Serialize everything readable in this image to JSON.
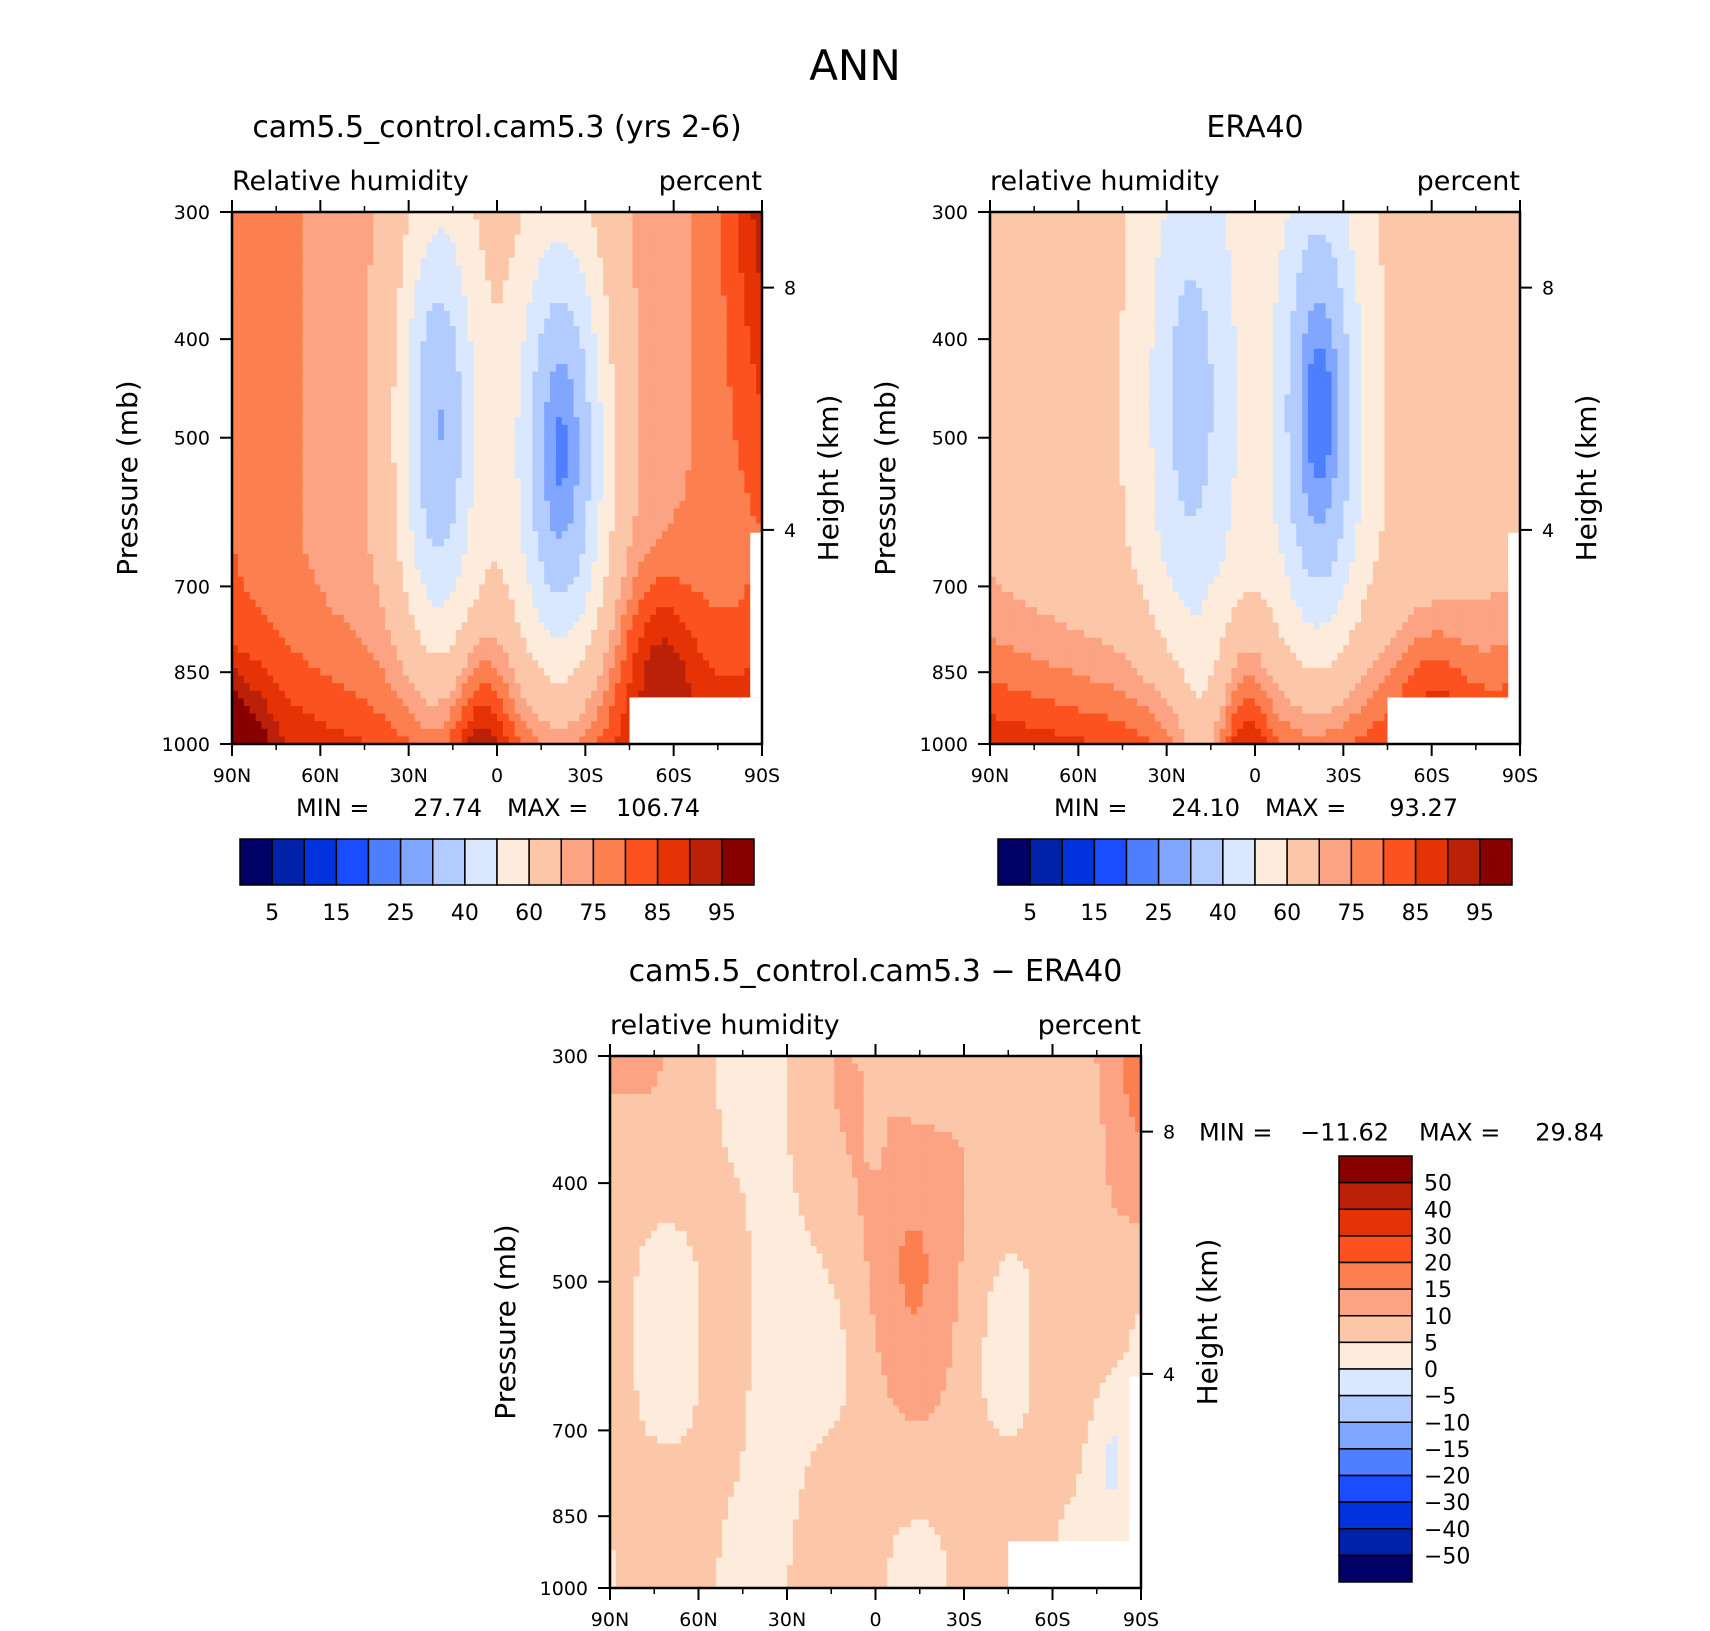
{
  "figure": {
    "title": "ANN"
  },
  "chart_data": [
    {
      "type": "heatmap",
      "id": "model",
      "title": "cam5.5_control.cam5.3 (yrs 2-6)",
      "subtitle_left": "Relative humidity",
      "subtitle_right": "percent",
      "ylabel": "Pressure (mb)",
      "ylabel_right": "Height (km)",
      "x_ticks": [
        "90N",
        "60N",
        "30N",
        "0",
        "30S",
        "60S",
        "90S"
      ],
      "x_range": [
        90,
        -90
      ],
      "y_ticks": [
        300,
        400,
        500,
        700,
        850,
        1000
      ],
      "y_range": [
        300,
        1000
      ],
      "y_scale": "log",
      "y_right_ticks": [
        "8",
        "4"
      ],
      "stats": {
        "min_label": "MIN =",
        "min": "27.74",
        "max_label": "MAX =",
        "max": "106.74"
      },
      "colorbar": {
        "orientation": "horizontal",
        "labels": [
          "5",
          "15",
          "25",
          "40",
          "60",
          "75",
          "85",
          "95"
        ]
      },
      "field": "model"
    },
    {
      "type": "heatmap",
      "id": "obs",
      "title": "ERA40",
      "subtitle_left": "relative humidity",
      "subtitle_right": "percent",
      "ylabel": "Pressure (mb)",
      "ylabel_right": "Height (km)",
      "x_ticks": [
        "90N",
        "60N",
        "30N",
        "0",
        "30S",
        "60S",
        "90S"
      ],
      "x_range": [
        90,
        -90
      ],
      "y_ticks": [
        300,
        400,
        500,
        700,
        850,
        1000
      ],
      "y_range": [
        300,
        1000
      ],
      "y_scale": "log",
      "y_right_ticks": [
        "8",
        "4"
      ],
      "stats": {
        "min_label": "MIN =",
        "min": "24.10",
        "max_label": "MAX =",
        "max": "93.27"
      },
      "colorbar": {
        "orientation": "horizontal",
        "labels": [
          "5",
          "15",
          "25",
          "40",
          "60",
          "75",
          "85",
          "95"
        ]
      },
      "field": "obs"
    },
    {
      "type": "heatmap",
      "id": "diff",
      "title": "cam5.5_control.cam5.3 − ERA40",
      "subtitle_left": "relative humidity",
      "subtitle_right": "percent",
      "ylabel": "Pressure (mb)",
      "ylabel_right": "Height (km)",
      "x_ticks": [
        "90N",
        "60N",
        "30N",
        "0",
        "30S",
        "60S",
        "90S"
      ],
      "x_range": [
        90,
        -90
      ],
      "y_ticks": [
        300,
        400,
        500,
        700,
        850,
        1000
      ],
      "y_range": [
        300,
        1000
      ],
      "y_scale": "log",
      "y_right_ticks": [
        "8",
        "4"
      ],
      "stats": {
        "min_label": "MIN =",
        "min": "−11.62",
        "max_label": "MAX =",
        "max": "29.84"
      },
      "colorbar": {
        "orientation": "vertical",
        "labels": [
          "50",
          "40",
          "30",
          "20",
          "15",
          "10",
          "5",
          "0",
          "−5",
          "−10",
          "−15",
          "−20",
          "−30",
          "−40",
          "−50"
        ]
      },
      "field": "diff"
    }
  ],
  "palette": {
    "main": [
      "#000066",
      "#0022a8",
      "#0033dd",
      "#1a4dff",
      "#4d7fff",
      "#80a6ff",
      "#b3ccff",
      "#d9e8ff",
      "#fdebdb",
      "#fcc7a8",
      "#fca383",
      "#fc7f4f",
      "#fc521f",
      "#e63305",
      "#bb2008",
      "#880000"
    ],
    "diff": [
      "#880000",
      "#bb2008",
      "#e63305",
      "#fc521f",
      "#fc7f4f",
      "#fca383",
      "#fcc7a8",
      "#fdebdb",
      "#d9e8ff",
      "#b3ccff",
      "#80a6ff",
      "#4d7fff",
      "#1a4dff",
      "#0033dd",
      "#0022a8",
      "#000066"
    ]
  }
}
